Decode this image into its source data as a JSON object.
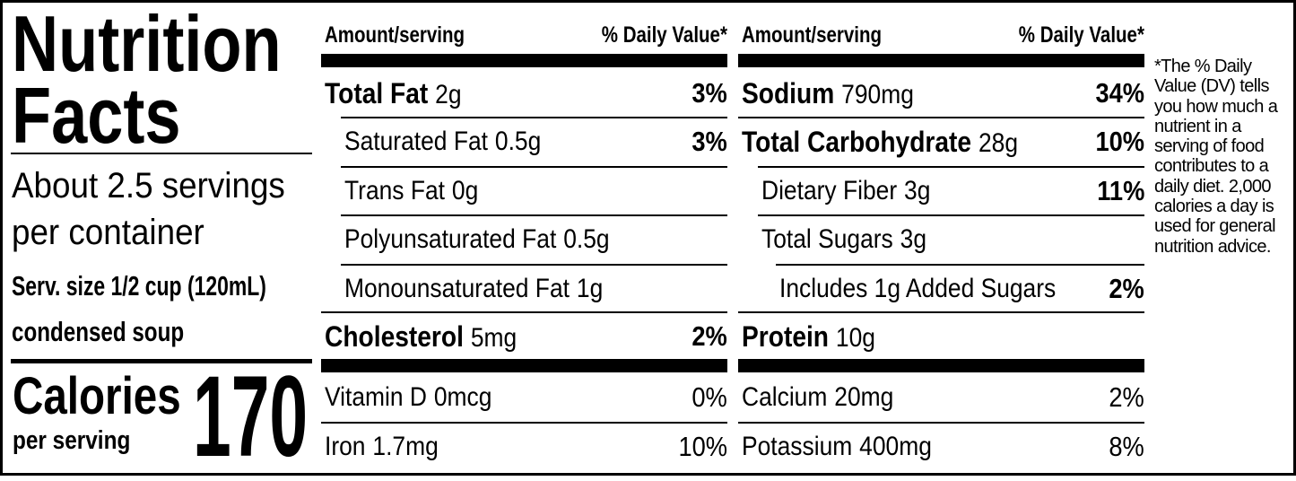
{
  "title": [
    "Nutrition",
    "Facts"
  ],
  "servings": [
    "About 2.5 servings",
    "per container"
  ],
  "serving_size": [
    "Serv. size 1/2 cup (120mL)",
    "condensed soup"
  ],
  "calories": {
    "label": "Calories",
    "sublabel": "per serving",
    "value": 170
  },
  "columns": [
    {
      "header": {
        "amount": "Amount/serving",
        "daily_value": "% Daily Value*"
      },
      "nutrients": [
        {
          "name": "Total Fat",
          "amount": "2g",
          "daily_value": "3%"
        },
        {
          "name": "Saturated Fat",
          "amount": "0.5g",
          "daily_value": "3%"
        },
        {
          "name": "Trans Fat",
          "amount": "0g"
        },
        {
          "name": "Polyunsaturated Fat",
          "amount": "0.5g"
        },
        {
          "name": "Monounsaturated Fat",
          "amount": "1g"
        },
        {
          "name": "Cholesterol",
          "amount": "5mg",
          "daily_value": "2%"
        }
      ],
      "vitamins": [
        {
          "name": "Vitamin D",
          "amount": "0mcg",
          "daily_value": "0%"
        },
        {
          "name": "Iron",
          "amount": "1.7mg",
          "daily_value": "10%"
        }
      ]
    },
    {
      "header": {
        "amount": "Amount/serving",
        "daily_value": "% Daily Value*"
      },
      "nutrients": [
        {
          "name": "Sodium",
          "amount": "790mg",
          "daily_value": "34%"
        },
        {
          "name": "Total Carbohydrate",
          "amount": "28g",
          "daily_value": "10%"
        },
        {
          "name": "Dietary Fiber",
          "amount": "3g",
          "daily_value": "11%"
        },
        {
          "name": "Total Sugars",
          "amount": "3g"
        },
        {
          "name": "Includes 1g Added Sugars",
          "daily_value": "2%"
        },
        {
          "name": "Protein",
          "amount": "10g"
        }
      ],
      "vitamins": [
        {
          "name": "Calcium",
          "amount": "20mg",
          "daily_value": "2%"
        },
        {
          "name": "Potassium",
          "amount": "400mg",
          "daily_value": "8%"
        }
      ]
    }
  ],
  "footnote": "*The % Daily Value (DV) tells you how much a nutrient in a serving of food contributes to a daily diet. 2,000 calories a day is used for general nutrition advice."
}
